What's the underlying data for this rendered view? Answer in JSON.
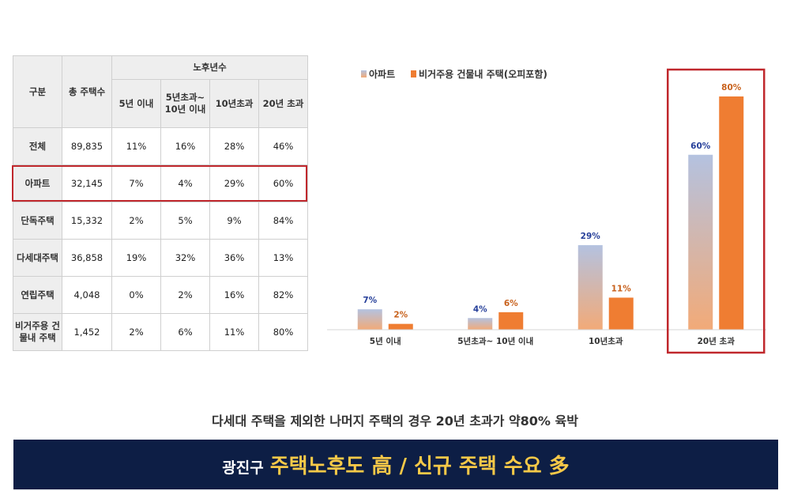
{
  "table": {
    "col_group": "구분",
    "col_total": "총 주택수",
    "col_age_group": "노후년수",
    "age_cols": [
      "5년 이내",
      "5년초과~\n10년 이내",
      "10년초과",
      "20년 초과"
    ],
    "rows": [
      {
        "label": "전체",
        "total": "89,835",
        "values": [
          "11%",
          "16%",
          "28%",
          "46%"
        ]
      },
      {
        "label": "아파트",
        "total": "32,145",
        "values": [
          "7%",
          "4%",
          "29%",
          "60%"
        ]
      },
      {
        "label": "단독주택",
        "total": "15,332",
        "values": [
          "2%",
          "5%",
          "9%",
          "84%"
        ]
      },
      {
        "label": "다세대주택",
        "total": "36,858",
        "values": [
          "19%",
          "32%",
          "36%",
          "13%"
        ]
      },
      {
        "label": "연립주택",
        "total": "4,048",
        "values": [
          "0%",
          "2%",
          "16%",
          "82%"
        ]
      },
      {
        "label": "비거주용 건\n물내 주택",
        "total": "1,452",
        "values": [
          "2%",
          "6%",
          "11%",
          "80%"
        ]
      }
    ],
    "highlight_color": "#c0282d"
  },
  "chart_data": {
    "type": "bar",
    "categories": [
      "5년 이내",
      "5년초과~ 10년 이내",
      "10년초과",
      "20년 초과"
    ],
    "series": [
      {
        "name": "아파트",
        "values": [
          7,
          4,
          29,
          60
        ],
        "labels": [
          "7%",
          "4%",
          "29%",
          "60%"
        ],
        "color_top": "#b4c2e0",
        "color_bottom": "#f2aa78"
      },
      {
        "name": "비거주용  건물내 주택(오피포함)",
        "values": [
          2,
          6,
          11,
          80
        ],
        "labels": [
          "2%",
          "6%",
          "11%",
          "80%"
        ],
        "color": "#ef7d32"
      }
    ],
    "ylim": [
      0,
      80
    ],
    "legend_position": "top-left",
    "highlight_category": "20년 초과",
    "highlight_color": "#c0282d"
  },
  "caption": "다세대 주택을 제외한 나머지 주택의 경우 20년 초과가 약80% 육박",
  "banner": {
    "region": "광진구",
    "main": "주택노후도 高 / 신규 주택 수요 多",
    "background": "#0d1e45",
    "accent": "#f7c948"
  }
}
